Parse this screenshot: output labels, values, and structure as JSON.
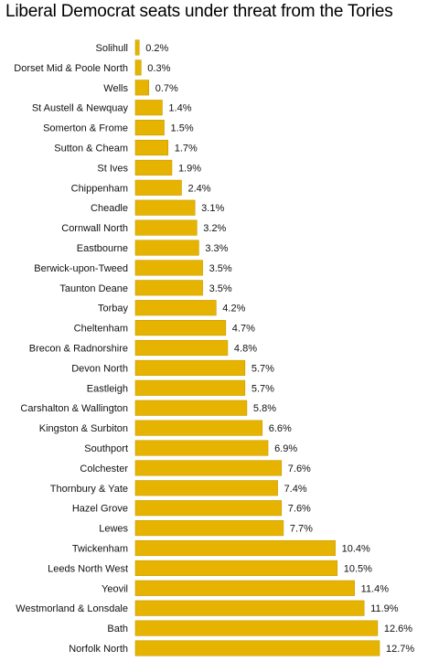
{
  "chart_data": {
    "type": "bar",
    "orientation": "horizontal",
    "title": "Liberal Democrat seats under threat from the Tories",
    "xlabel": "",
    "ylabel": "",
    "xlim": [
      0,
      12.7
    ],
    "grid": false,
    "bar_color": "#e6b400",
    "categories": [
      "Solihull",
      "Dorset Mid & Poole North",
      "Wells",
      "St Austell & Newquay",
      "Somerton & Frome",
      "Sutton & Cheam",
      "St Ives",
      "Chippenham",
      "Cheadle",
      "Cornwall North",
      "Eastbourne",
      "Berwick-upon-Tweed",
      "Taunton Deane",
      "Torbay",
      "Cheltenham",
      "Brecon & Radnorshire",
      "Devon North",
      "Eastleigh",
      "Carshalton & Wallington",
      "Kingston & Surbiton",
      "Southport",
      "Colchester",
      "Thornbury & Yate",
      "Hazel Grove",
      "Lewes",
      "Twickenham",
      "Leeds North West",
      "Yeovil",
      "Westmorland & Lonsdale",
      "Bath",
      "Norfolk North"
    ],
    "values": [
      0.2,
      0.3,
      0.7,
      1.4,
      1.5,
      1.7,
      1.9,
      2.4,
      3.1,
      3.2,
      3.3,
      3.5,
      3.5,
      4.2,
      4.7,
      4.8,
      5.7,
      5.7,
      5.8,
      6.6,
      6.9,
      7.6,
      7.4,
      7.6,
      7.7,
      10.4,
      10.5,
      11.4,
      11.9,
      12.6,
      12.7
    ],
    "value_labels": [
      "0.2%",
      "0.3%",
      "0.7%",
      "1.4%",
      "1.5%",
      "1.7%",
      "1.9%",
      "2.4%",
      "3.1%",
      "3.2%",
      "3.3%",
      "3.5%",
      "3.5%",
      "4.2%",
      "4.7%",
      "4.8%",
      "5.7%",
      "5.7%",
      "5.8%",
      "6.6%",
      "6.9%",
      "7.6%",
      "7.4%",
      "7.6%",
      "7.7%",
      "10.4%",
      "10.5%",
      "11.4%",
      "11.9%",
      "12.6%",
      "12.7%"
    ]
  }
}
